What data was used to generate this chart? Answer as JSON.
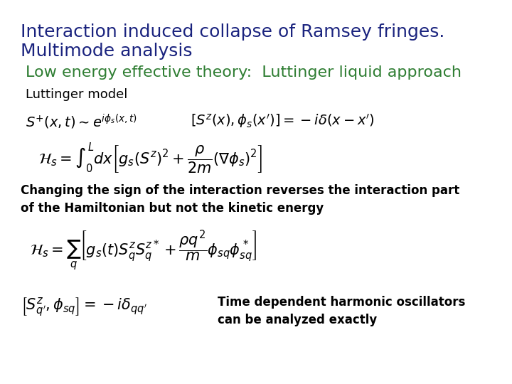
{
  "title_line1": "Interaction induced collapse of Ramsey fringes.",
  "title_line2": "Multimode analysis",
  "title_color": "#1a237e",
  "title_fontsize": 18,
  "subtitle": "Low energy effective theory:  Luttinger liquid approach",
  "subtitle_color": "#2e7d32",
  "subtitle_fontsize": 16,
  "section_label": "Luttinger model",
  "section_label_color": "#000000",
  "section_label_fontsize": 13,
  "eq1_latex": "$S^{+}(x,t) \\sim e^{i\\phi_s(x,t)}$",
  "eq2_latex": "$[S^z(x), \\phi_s(x')] = -i\\delta(x - x')$",
  "eq3_latex": "$\\mathcal{H}_s = \\int_0^L dx\\left[g_s(S^z)^2 + \\dfrac{\\rho}{2m}(\\nabla\\phi_s)^2\\right]$",
  "text_changing": "Changing the sign of the interaction reverses the interaction part\nof the Hamiltonian but not the kinetic energy",
  "text_changing_fontsize": 12,
  "eq4_latex": "$\\mathcal{H}_s = \\sum_{q} \\left[g_s(t)S^z_q S^{z*}_q + \\dfrac{\\rho q^2}{m}\\phi_{sq}\\phi^*_{sq}\\right]$",
  "eq5_latex": "$\\left[S^z_{q'}, \\phi_{sq}\\right] = -i\\delta_{qq'}$",
  "text_time": "Time dependent harmonic oscillators\ncan be analyzed exactly",
  "text_time_fontsize": 12,
  "bg_color": "#ffffff",
  "eq_color": "#000000",
  "eq_fontsize": 14
}
